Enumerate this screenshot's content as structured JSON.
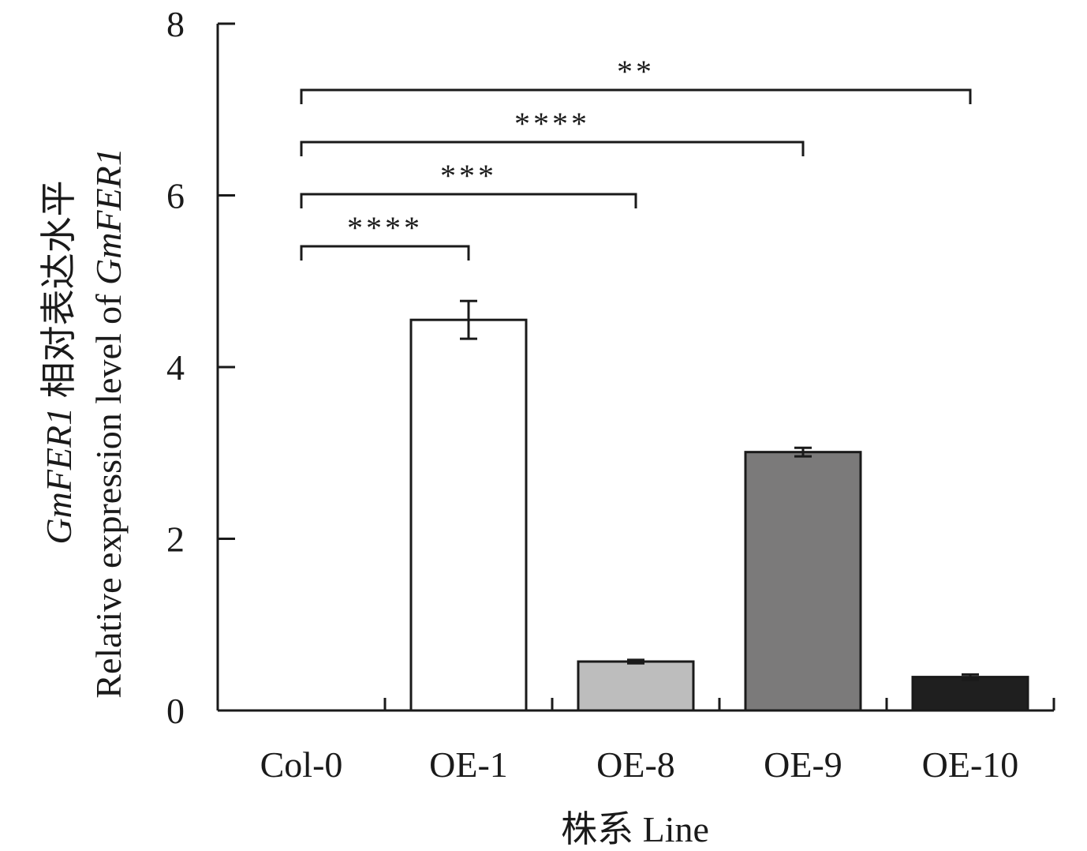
{
  "chart_data": {
    "type": "bar",
    "categories": [
      "Col-0",
      "OE-1",
      "OE-8",
      "OE-9",
      "OE-10"
    ],
    "values": [
      0,
      4.55,
      0.57,
      3.01,
      0.39
    ],
    "errors": [
      0,
      0.22,
      0.02,
      0.05,
      0.03
    ],
    "colors": [
      "#ffffff",
      "#ffffff",
      "#bdbdbd",
      "#7b7a7a",
      "#1f1f1f"
    ],
    "ylim": [
      0,
      8
    ],
    "yticks": [
      "0",
      "2",
      "4",
      "6",
      "8"
    ],
    "ylabel_line1_italic": "GmFER1",
    "ylabel_line1_rest": " 相对表达水平",
    "ylabel_line2_text": "Relative expression level of ",
    "ylabel_line2_italic": "GmFER1",
    "xlabel": "株系 Line",
    "significance": [
      {
        "from": "Col-0",
        "to": "OE-1",
        "label": "****"
      },
      {
        "from": "Col-0",
        "to": "OE-8",
        "label": "***"
      },
      {
        "from": "Col-0",
        "to": "OE-9",
        "label": "****"
      },
      {
        "from": "Col-0",
        "to": "OE-10",
        "label": "**"
      }
    ]
  }
}
